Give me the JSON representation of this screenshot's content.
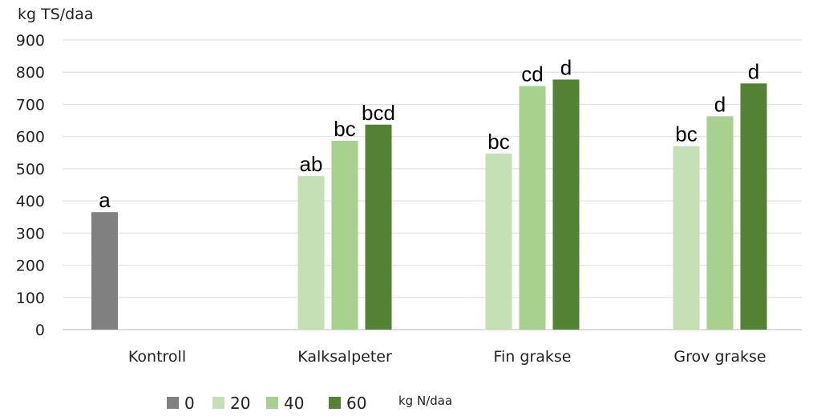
{
  "chart_data": {
    "type": "bar",
    "title": "",
    "ylabel": "kg TS/daa",
    "xlabel": "",
    "ylim": [
      0,
      900
    ],
    "yticks": [
      0,
      100,
      200,
      300,
      400,
      500,
      600,
      700,
      800,
      900
    ],
    "grid": true,
    "categories": [
      "Kontroll",
      "Kalksalpeter",
      "Fin grakse",
      "Grov grakse"
    ],
    "legend_title": "kg N/daa",
    "legend_position": "bottom",
    "series": [
      {
        "name": "0",
        "color": "#808080",
        "values": [
          365,
          null,
          null,
          null
        ],
        "labels": [
          "a",
          null,
          null,
          null
        ]
      },
      {
        "name": "20",
        "color": "#c5e0b4",
        "values": [
          null,
          477,
          547,
          570
        ],
        "labels": [
          null,
          "ab",
          "bc",
          "bc"
        ]
      },
      {
        "name": "40",
        "color": "#a9d18e",
        "values": [
          null,
          587,
          757,
          663
        ],
        "labels": [
          null,
          "bc",
          "cd",
          "d"
        ]
      },
      {
        "name": "60",
        "color": "#548235",
        "values": [
          null,
          637,
          777,
          765
        ],
        "labels": [
          null,
          "bcd",
          "d",
          "d"
        ]
      }
    ]
  }
}
